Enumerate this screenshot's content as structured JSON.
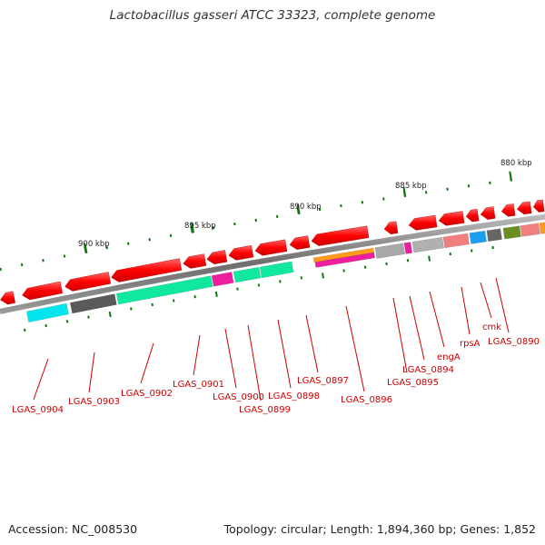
{
  "title": "Lactobacillus gasseri ATCC 33323, complete genome",
  "footer": {
    "accession": "Accession: NC_008530",
    "summary": "Topology: circular; Length: 1,894,360 bp; Genes: 1,852"
  },
  "scale_labels": [
    {
      "text": "900 kbp"
    },
    {
      "text": "895 kbp"
    },
    {
      "text": "890 kbp"
    },
    {
      "text": "885 kbp"
    },
    {
      "text": "880 kbp"
    }
  ],
  "gene_labels": [
    {
      "text": "LGAS_0904"
    },
    {
      "text": "LGAS_0903"
    },
    {
      "text": "LGAS_0902"
    },
    {
      "text": "LGAS_0901"
    },
    {
      "text": "LGAS_0900"
    },
    {
      "text": "LGAS_0899"
    },
    {
      "text": "LGAS_0898"
    },
    {
      "text": "LGAS_0897"
    },
    {
      "text": "LGAS_0896"
    },
    {
      "text": "LGAS_0895"
    },
    {
      "text": "LGAS_0894"
    },
    {
      "text": "engA"
    },
    {
      "text": "rpsA"
    },
    {
      "text": "cmk"
    },
    {
      "text": "LGAS_0890"
    }
  ],
  "colors": {
    "backbone": "#7a7a7a",
    "arrow": "#ff1a1a",
    "tick": "#117711",
    "label": "#cc0000"
  }
}
